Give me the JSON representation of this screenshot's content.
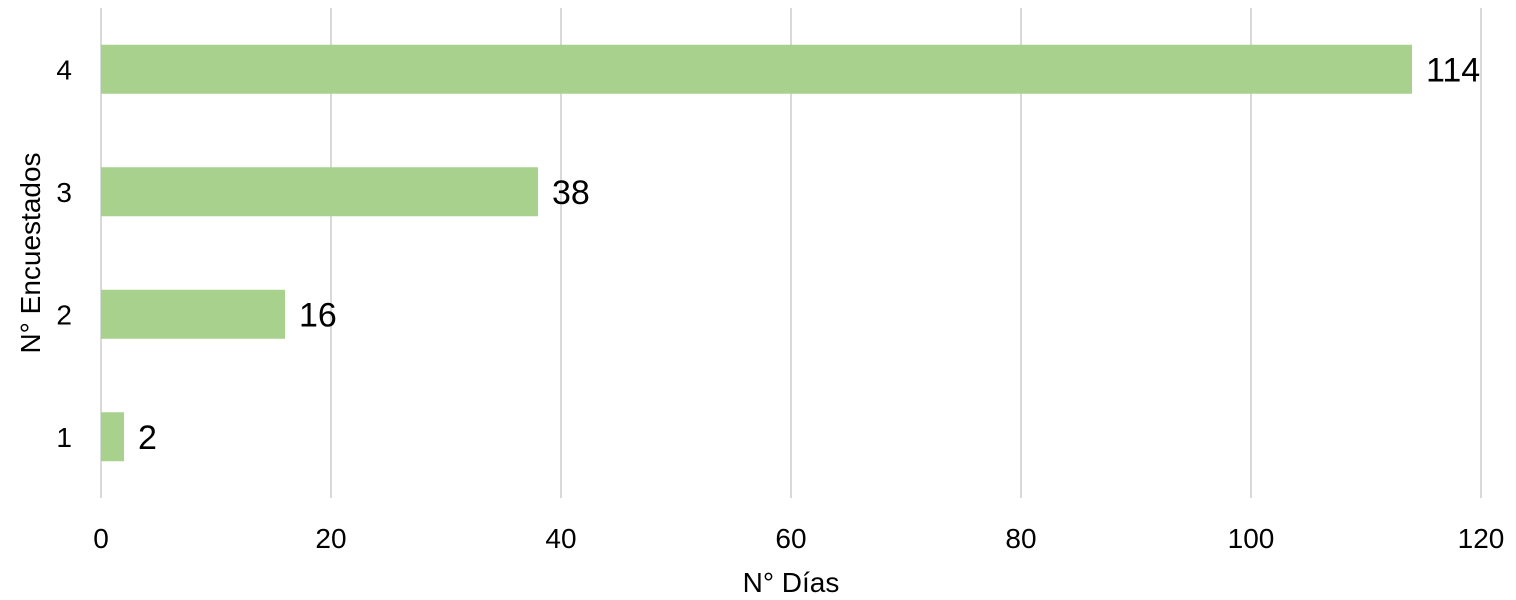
{
  "chart_data": {
    "type": "bar",
    "orientation": "horizontal",
    "categories": [
      "1",
      "2",
      "3",
      "4"
    ],
    "values": [
      2,
      16,
      38,
      114
    ],
    "data_labels": [
      "2",
      "16",
      "38",
      "114"
    ],
    "title": "",
    "xlabel": "N° Días",
    "ylabel": "N° Encuestados",
    "xlim": [
      0,
      120
    ],
    "xticks": [
      "0",
      "20",
      "40",
      "60",
      "80",
      "100",
      "120"
    ],
    "grid": "vertical",
    "legend": "none",
    "bar_color": "#a9d18e",
    "grid_color": "#d9d9d9"
  }
}
